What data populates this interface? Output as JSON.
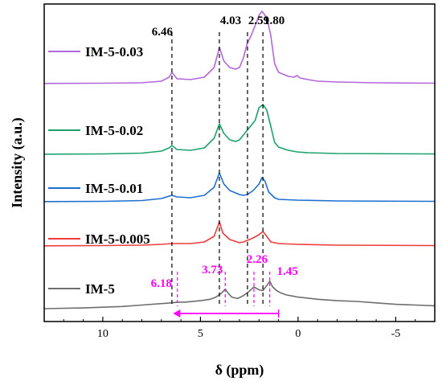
{
  "chart_data": {
    "type": "line",
    "xlabel": "δ (ppm)",
    "ylabel": "Intensity (a.u.)",
    "xlim": [
      13,
      -7
    ],
    "x_reversed": true,
    "x_ticks": [
      {
        "value": 10,
        "label": "10"
      },
      {
        "value": 5,
        "label": "5"
      },
      {
        "value": 0,
        "label": "0"
      },
      {
        "value": -5,
        "label": "-5"
      }
    ],
    "reference_lines": [
      {
        "ppm": 6.46,
        "label": "6.46"
      },
      {
        "ppm": 4.03,
        "label": "4.03"
      },
      {
        "ppm": 2.59,
        "label": "2.59"
      },
      {
        "ppm": 1.8,
        "label": "1.80"
      }
    ],
    "im5_peak_markers": [
      {
        "ppm": 6.18,
        "label": "6.18"
      },
      {
        "ppm": 3.73,
        "label": "3.73"
      },
      {
        "ppm": 2.26,
        "label": "2.26"
      },
      {
        "ppm": 1.45,
        "label": "1.45"
      }
    ],
    "shift_arrow": {
      "from_ppm": 1.0,
      "to_ppm": 6.4
    },
    "annotation_color": "#ff00ff",
    "series": [
      {
        "name": "IM-5-0.03",
        "color": "#b267db",
        "points": [
          [
            13,
            0.2
          ],
          [
            10,
            0.5
          ],
          [
            8,
            1
          ],
          [
            7,
            3
          ],
          [
            6.6,
            8
          ],
          [
            6.46,
            14
          ],
          [
            6.2,
            6
          ],
          [
            5.5,
            5
          ],
          [
            4.8,
            8
          ],
          [
            4.3,
            20
          ],
          [
            4.03,
            45
          ],
          [
            3.8,
            28
          ],
          [
            3.5,
            20
          ],
          [
            3.2,
            18
          ],
          [
            3,
            20
          ],
          [
            2.8,
            32
          ],
          [
            2.6,
            50
          ],
          [
            2.4,
            60
          ],
          [
            2.2,
            72
          ],
          [
            2,
            85
          ],
          [
            1.85,
            90
          ],
          [
            1.6,
            82
          ],
          [
            1.4,
            60
          ],
          [
            1.2,
            25
          ],
          [
            1,
            14
          ],
          [
            0.5,
            9
          ],
          [
            0.2,
            8
          ],
          [
            0.05,
            10
          ],
          [
            -0.1,
            7
          ],
          [
            -0.5,
            5
          ],
          [
            -1,
            3
          ],
          [
            -2,
            2
          ],
          [
            -4,
            1
          ],
          [
            -7,
            0.5
          ]
        ]
      },
      {
        "name": "IM-5-0.02",
        "color": "#1ba36b",
        "points": [
          [
            13,
            0.2
          ],
          [
            10,
            0.5
          ],
          [
            8,
            1.5
          ],
          [
            7,
            4
          ],
          [
            6.6,
            8
          ],
          [
            6.46,
            11
          ],
          [
            6.2,
            6
          ],
          [
            5.5,
            5
          ],
          [
            4.8,
            8
          ],
          [
            4.3,
            20
          ],
          [
            4.03,
            38
          ],
          [
            3.8,
            26
          ],
          [
            3.5,
            18
          ],
          [
            3.2,
            16
          ],
          [
            3,
            18
          ],
          [
            2.8,
            24
          ],
          [
            2.5,
            33
          ],
          [
            2.2,
            42
          ],
          [
            2,
            58
          ],
          [
            1.8,
            62
          ],
          [
            1.6,
            55
          ],
          [
            1.4,
            35
          ],
          [
            1.2,
            15
          ],
          [
            1,
            9
          ],
          [
            0.5,
            5
          ],
          [
            0.05,
            3
          ],
          [
            -0.5,
            2
          ],
          [
            -2,
            1
          ],
          [
            -7,
            0.5
          ]
        ]
      },
      {
        "name": "IM-5-0.01",
        "color": "#1f6fd0",
        "points": [
          [
            13,
            0.2
          ],
          [
            10,
            0.5
          ],
          [
            8,
            1.5
          ],
          [
            7,
            4
          ],
          [
            6.6,
            7
          ],
          [
            6.46,
            8
          ],
          [
            6.2,
            6
          ],
          [
            5.5,
            5
          ],
          [
            4.8,
            8
          ],
          [
            4.3,
            18
          ],
          [
            4.03,
            36
          ],
          [
            3.8,
            22
          ],
          [
            3.5,
            14
          ],
          [
            3,
            9
          ],
          [
            2.8,
            8
          ],
          [
            2.59,
            9
          ],
          [
            2.3,
            14
          ],
          [
            2,
            22
          ],
          [
            1.85,
            30
          ],
          [
            1.7,
            26
          ],
          [
            1.5,
            12
          ],
          [
            1.2,
            5
          ],
          [
            1,
            3
          ],
          [
            0.05,
            2
          ],
          [
            -2,
            1
          ],
          [
            -7,
            0.5
          ]
        ]
      },
      {
        "name": "IM-5-0.005",
        "color": "#ef3b3b",
        "points": [
          [
            13,
            0.2
          ],
          [
            10,
            0.5
          ],
          [
            8,
            1
          ],
          [
            7,
            2
          ],
          [
            6.46,
            3
          ],
          [
            6,
            3
          ],
          [
            5.5,
            3
          ],
          [
            4.8,
            5
          ],
          [
            4.3,
            12
          ],
          [
            4.03,
            30
          ],
          [
            3.85,
            16
          ],
          [
            3.5,
            8
          ],
          [
            3,
            4
          ],
          [
            2.8,
            5
          ],
          [
            2.59,
            7
          ],
          [
            2.3,
            10
          ],
          [
            2,
            14
          ],
          [
            1.8,
            18
          ],
          [
            1.6,
            12
          ],
          [
            1.4,
            5
          ],
          [
            1,
            3
          ],
          [
            0,
            2
          ],
          [
            -2,
            1
          ],
          [
            -7,
            0.5
          ]
        ]
      },
      {
        "name": "IM-5",
        "color": "#6e6e6e",
        "points": [
          [
            13,
            0
          ],
          [
            11,
            1
          ],
          [
            10,
            2
          ],
          [
            9,
            3
          ],
          [
            8,
            5
          ],
          [
            7,
            7
          ],
          [
            6.5,
            8
          ],
          [
            6.18,
            9
          ],
          [
            5.8,
            9
          ],
          [
            5,
            11
          ],
          [
            4.5,
            13
          ],
          [
            4.2,
            16
          ],
          [
            3.9,
            22
          ],
          [
            3.73,
            27
          ],
          [
            3.6,
            22
          ],
          [
            3.4,
            16
          ],
          [
            3.1,
            14
          ],
          [
            2.8,
            18
          ],
          [
            2.5,
            24
          ],
          [
            2.26,
            30
          ],
          [
            2,
            26
          ],
          [
            1.8,
            25
          ],
          [
            1.6,
            32
          ],
          [
            1.45,
            38
          ],
          [
            1.3,
            30
          ],
          [
            1.1,
            25
          ],
          [
            0.9,
            22
          ],
          [
            0.6,
            19
          ],
          [
            0.2,
            17
          ],
          [
            0,
            16
          ],
          [
            -1,
            13
          ],
          [
            -2,
            11
          ],
          [
            -3,
            10
          ],
          [
            -4,
            8
          ],
          [
            -5,
            6
          ],
          [
            -6,
            5
          ],
          [
            -7,
            4
          ]
        ]
      }
    ]
  }
}
